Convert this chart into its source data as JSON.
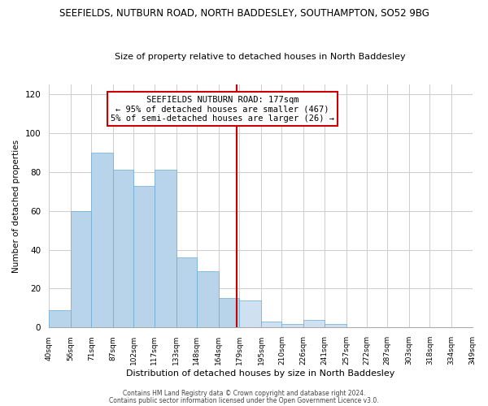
{
  "title_main": "SEEFIELDS, NUTBURN ROAD, NORTH BADDESLEY, SOUTHAMPTON, SO52 9BG",
  "title_sub": "Size of property relative to detached houses in North Baddesley",
  "xlabel": "Distribution of detached houses by size in North Baddesley",
  "ylabel": "Number of detached properties",
  "bar_edges": [
    40,
    56,
    71,
    87,
    102,
    117,
    133,
    148,
    164,
    179,
    195,
    210,
    226,
    241,
    257,
    272,
    287,
    303,
    318,
    334,
    349
  ],
  "bar_heights": [
    9,
    60,
    90,
    81,
    73,
    81,
    36,
    29,
    15,
    14,
    3,
    2,
    4,
    2,
    0,
    0,
    0,
    0,
    0,
    0
  ],
  "bar_color_left": "#b8d4ea",
  "bar_color_right": "#cfe0f0",
  "bar_edge_color": "#6aaad4",
  "vline_x": 177,
  "vline_color": "#cc0000",
  "annotation_title": "SEEFIELDS NUTBURN ROAD: 177sqm",
  "annotation_line1": "← 95% of detached houses are smaller (467)",
  "annotation_line2": "5% of semi-detached houses are larger (26) →",
  "annotation_box_facecolor": "#ffffff",
  "annotation_box_edgecolor": "#cc0000",
  "ylim": [
    0,
    125
  ],
  "yticks": [
    0,
    20,
    40,
    60,
    80,
    100,
    120
  ],
  "tick_labels": [
    "40sqm",
    "56sqm",
    "71sqm",
    "87sqm",
    "102sqm",
    "117sqm",
    "133sqm",
    "148sqm",
    "164sqm",
    "179sqm",
    "195sqm",
    "210sqm",
    "226sqm",
    "241sqm",
    "257sqm",
    "272sqm",
    "287sqm",
    "303sqm",
    "318sqm",
    "334sqm",
    "349sqm"
  ],
  "footer1": "Contains HM Land Registry data © Crown copyright and database right 2024.",
  "footer2": "Contains public sector information licensed under the Open Government Licence v3.0.",
  "bg_color": "#ffffff",
  "grid_color": "#cccccc",
  "title_main_fontsize": 8.5,
  "title_sub_fontsize": 8.0,
  "xlabel_fontsize": 8.0,
  "ylabel_fontsize": 7.5,
  "annotation_fontsize": 7.5,
  "footer_fontsize": 5.5
}
